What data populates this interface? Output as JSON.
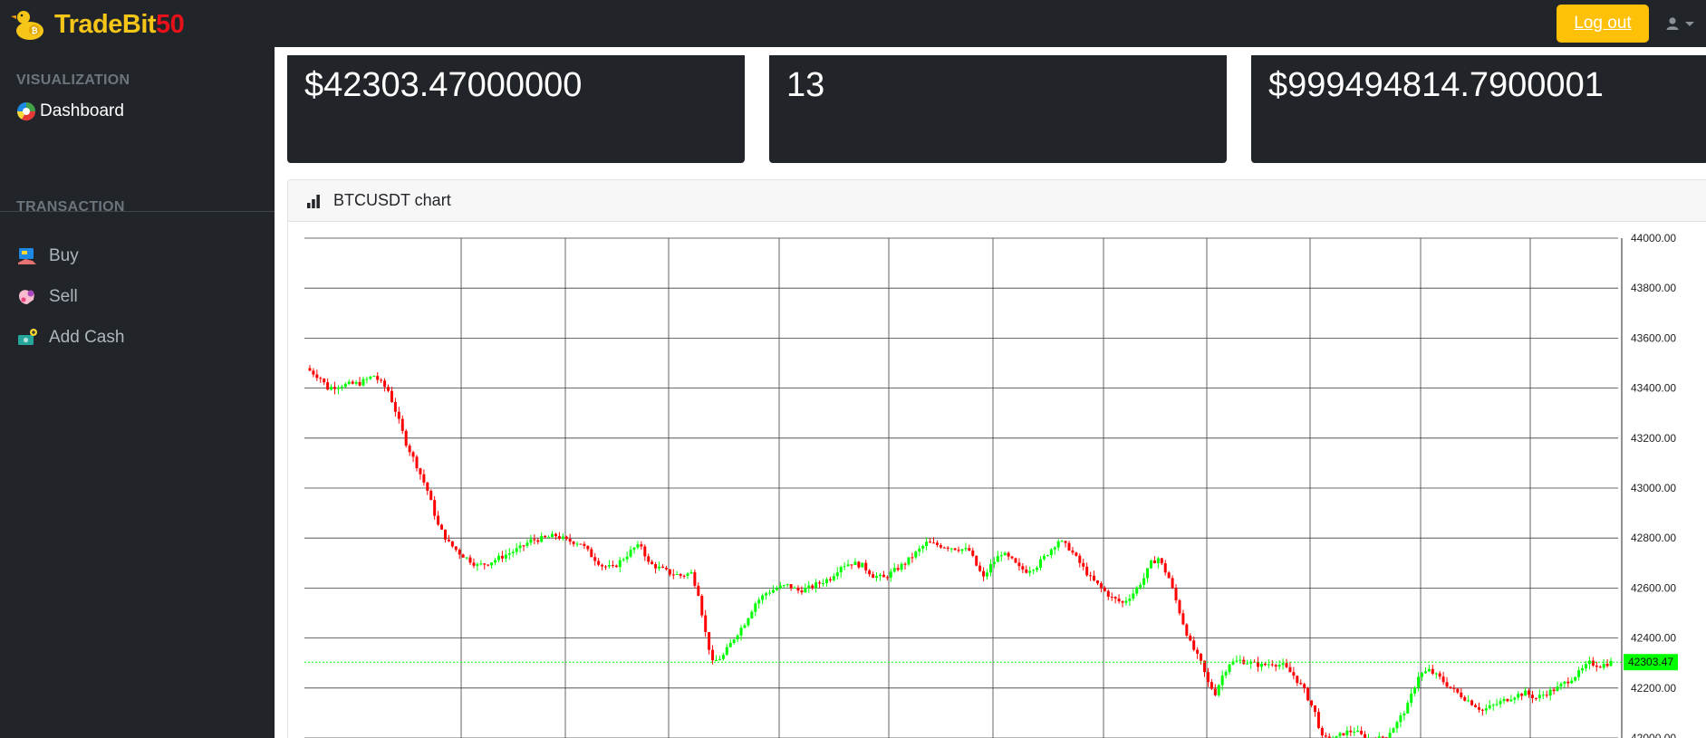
{
  "brand": {
    "name": "TradeBit",
    "number": "50"
  },
  "header": {
    "logout_label": "Log out"
  },
  "sidebar": {
    "sections": [
      {
        "heading": "VISUALIZATION",
        "items": [
          {
            "label": "Dashboard",
            "icon": "dashboard-pie-icon"
          }
        ]
      },
      {
        "heading": "TRANSACTION",
        "items": [
          {
            "label": "Buy",
            "icon": "buy-icon"
          },
          {
            "label": "Sell",
            "icon": "sell-icon"
          },
          {
            "label": "Add Cash",
            "icon": "add-cash-icon"
          }
        ]
      }
    ]
  },
  "stats": [
    {
      "value": "$42303.47000000"
    },
    {
      "value": "13"
    },
    {
      "value": "$999494814.7900001"
    }
  ],
  "chart_card": {
    "title": "BTCUSDT chart",
    "icon": "bar-chart-icon"
  },
  "colors": {
    "up": "#00ff00",
    "down": "#ff0000",
    "accent": "#ffc107",
    "brand": "#f5c518",
    "brand_number": "#e6111a",
    "panel": "#212529"
  },
  "chart_data": {
    "type": "candlestick",
    "symbol": "BTCUSDT",
    "y_ticks": [
      "44000.00",
      "43800.00",
      "43600.00",
      "43400.00",
      "43200.00",
      "43000.00",
      "42800.00",
      "42600.00",
      "42400.00",
      "42200.00",
      "42000.00"
    ],
    "ylim": [
      41980,
      44000
    ],
    "grid": true,
    "last_price": 42303.47,
    "last_price_label": "42303.47",
    "close_path": [
      [
        0,
        43470
      ],
      [
        3,
        43440
      ],
      [
        5,
        43400
      ],
      [
        8,
        43410
      ],
      [
        14,
        43420
      ],
      [
        18,
        43450
      ],
      [
        22,
        43390
      ],
      [
        24,
        43310
      ],
      [
        27,
        43180
      ],
      [
        30,
        43090
      ],
      [
        33,
        42990
      ],
      [
        36,
        42850
      ],
      [
        39,
        42780
      ],
      [
        42,
        42740
      ],
      [
        45,
        42710
      ],
      [
        47,
        42690
      ],
      [
        50,
        42700
      ],
      [
        53,
        42720
      ],
      [
        56,
        42740
      ],
      [
        59,
        42760
      ],
      [
        62,
        42790
      ],
      [
        66,
        42800
      ],
      [
        69,
        42810
      ],
      [
        72,
        42790
      ],
      [
        76,
        42780
      ],
      [
        79,
        42730
      ],
      [
        82,
        42690
      ],
      [
        85,
        42680
      ],
      [
        88,
        42720
      ],
      [
        91,
        42760
      ],
      [
        93,
        42770
      ],
      [
        95,
        42700
      ],
      [
        98,
        42680
      ],
      [
        101,
        42660
      ],
      [
        104,
        42650
      ],
      [
        107,
        42660
      ],
      [
        109,
        42580
      ],
      [
        111,
        42420
      ],
      [
        113,
        42300
      ],
      [
        116,
        42330
      ],
      [
        119,
        42400
      ],
      [
        122,
        42460
      ],
      [
        125,
        42540
      ],
      [
        128,
        42580
      ],
      [
        131,
        42600
      ],
      [
        134,
        42610
      ],
      [
        137,
        42590
      ],
      [
        140,
        42600
      ],
      [
        143,
        42620
      ],
      [
        146,
        42640
      ],
      [
        149,
        42690
      ],
      [
        152,
        42700
      ],
      [
        155,
        42690
      ],
      [
        158,
        42650
      ],
      [
        161,
        42640
      ],
      [
        164,
        42670
      ],
      [
        167,
        42700
      ],
      [
        170,
        42740
      ],
      [
        173,
        42780
      ],
      [
        177,
        42770
      ],
      [
        181,
        42760
      ],
      [
        185,
        42750
      ],
      [
        187,
        42690
      ],
      [
        189,
        42640
      ],
      [
        191,
        42690
      ],
      [
        194,
        42740
      ],
      [
        197,
        42710
      ],
      [
        199,
        42680
      ],
      [
        201,
        42670
      ],
      [
        204,
        42690
      ],
      [
        207,
        42740
      ],
      [
        210,
        42790
      ],
      [
        213,
        42760
      ],
      [
        216,
        42700
      ],
      [
        219,
        42640
      ],
      [
        222,
        42600
      ],
      [
        225,
        42560
      ],
      [
        228,
        42540
      ],
      [
        231,
        42580
      ],
      [
        234,
        42640
      ],
      [
        236,
        42700
      ],
      [
        238,
        42720
      ],
      [
        241,
        42640
      ],
      [
        243,
        42550
      ],
      [
        245,
        42460
      ],
      [
        247,
        42380
      ],
      [
        250,
        42300
      ],
      [
        252,
        42220
      ],
      [
        254,
        42180
      ],
      [
        256,
        42250
      ],
      [
        258,
        42300
      ],
      [
        261,
        42310
      ],
      [
        264,
        42300
      ],
      [
        267,
        42290
      ],
      [
        270,
        42300
      ],
      [
        273,
        42290
      ],
      [
        276,
        42250
      ],
      [
        279,
        42190
      ],
      [
        282,
        42100
      ],
      [
        284,
        42000
      ],
      [
        287,
        41990
      ],
      [
        290,
        42020
      ],
      [
        293,
        42030
      ],
      [
        296,
        42000
      ],
      [
        299,
        41990
      ],
      [
        302,
        42010
      ],
      [
        305,
        42060
      ],
      [
        308,
        42130
      ],
      [
        311,
        42250
      ],
      [
        314,
        42270
      ],
      [
        317,
        42240
      ],
      [
        320,
        42200
      ],
      [
        323,
        42170
      ],
      [
        326,
        42140
      ],
      [
        329,
        42110
      ],
      [
        332,
        42130
      ],
      [
        335,
        42150
      ],
      [
        338,
        42170
      ],
      [
        341,
        42180
      ],
      [
        344,
        42160
      ],
      [
        347,
        42180
      ],
      [
        350,
        42200
      ],
      [
        353,
        42230
      ],
      [
        356,
        42260
      ],
      [
        359,
        42300
      ],
      [
        362,
        42290
      ],
      [
        365,
        42303
      ]
    ]
  }
}
